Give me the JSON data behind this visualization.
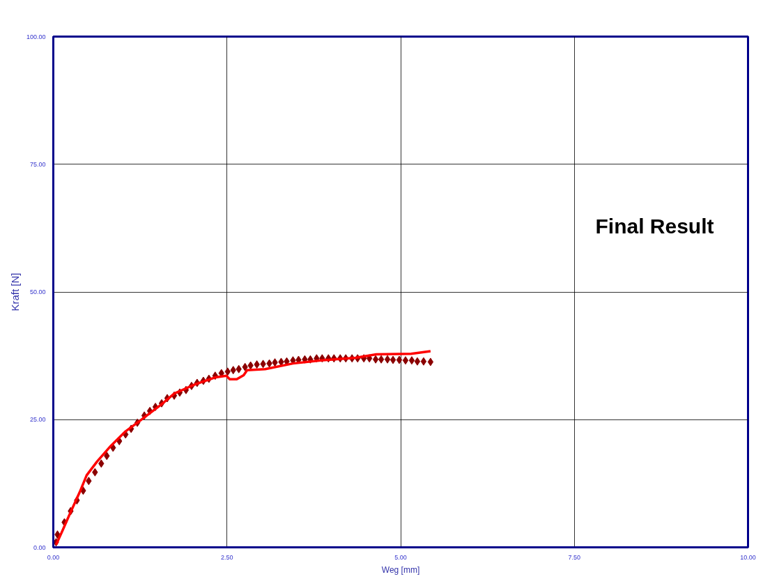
{
  "chart_data": {
    "type": "line",
    "xlabel": "Weg [mm]",
    "ylabel": "Kraft [N]",
    "xlim": [
      0,
      10
    ],
    "ylim": [
      0,
      100
    ],
    "xticks": [
      {
        "value": 0,
        "label": "0.00"
      },
      {
        "value": 2.5,
        "label": "2.50"
      },
      {
        "value": 5,
        "label": "5.00"
      },
      {
        "value": 7.5,
        "label": "7.50"
      },
      {
        "value": 10,
        "label": "10.00"
      }
    ],
    "yticks": [
      {
        "value": 0,
        "label": "0.00"
      },
      {
        "value": 25,
        "label": "25.00"
      },
      {
        "value": 50,
        "label": "50.00"
      },
      {
        "value": 75,
        "label": "75.00"
      },
      {
        "value": 100,
        "label": "100.00"
      }
    ],
    "grid": true,
    "annotations": [
      "Final Result"
    ],
    "series": [
      {
        "type": "scatter",
        "marker": "diamond",
        "color": "#8b0000",
        "x": [
          0.04,
          0.06,
          0.16,
          0.25,
          0.34,
          0.43,
          0.51,
          0.6,
          0.69,
          0.77,
          0.86,
          0.95,
          1.04,
          1.12,
          1.21,
          1.31,
          1.39,
          1.47,
          1.56,
          1.64,
          1.74,
          1.82,
          1.91,
          1.99,
          2.07,
          2.16,
          2.24,
          2.33,
          2.42,
          2.51,
          2.59,
          2.67,
          2.76,
          2.84,
          2.93,
          3.02,
          3.11,
          3.19,
          3.28,
          3.36,
          3.45,
          3.53,
          3.62,
          3.7,
          3.79,
          3.87,
          3.96,
          4.04,
          4.13,
          4.21,
          4.3,
          4.38,
          4.47,
          4.55,
          4.64,
          4.72,
          4.81,
          4.89,
          4.98,
          5.07,
          5.16,
          5.24,
          5.33,
          5.43
        ],
        "values": [
          1.0,
          2.5,
          4.9,
          7.1,
          9.2,
          11.1,
          13.0,
          14.7,
          16.4,
          17.9,
          19.5,
          20.8,
          22.1,
          23.2,
          24.4,
          25.8,
          26.7,
          27.5,
          28.2,
          29.2,
          29.7,
          30.3,
          30.8,
          31.6,
          32.2,
          32.6,
          33.0,
          33.6,
          34.1,
          34.4,
          34.7,
          34.9,
          35.3,
          35.6,
          35.8,
          35.9,
          36.0,
          36.2,
          36.3,
          36.4,
          36.6,
          36.7,
          36.8,
          36.8,
          37.0,
          37.0,
          37.0,
          37.0,
          37.0,
          37.0,
          37.0,
          37.0,
          37.0,
          37.0,
          36.8,
          36.8,
          36.8,
          36.7,
          36.7,
          36.6,
          36.6,
          36.4,
          36.4,
          36.3
        ]
      },
      {
        "marker": "none",
        "line_style": "solid",
        "color": "#ff0000",
        "x": [
          0.04,
          0.13,
          0.23,
          0.38,
          0.48,
          0.63,
          0.83,
          1.04,
          1.24,
          1.54,
          1.74,
          2.04,
          2.34,
          2.49,
          2.54,
          2.64,
          2.74,
          2.79,
          3.05,
          3.45,
          3.85,
          4.35,
          4.65,
          5.15,
          5.43
        ],
        "values": [
          0.5,
          3.2,
          6.3,
          10.8,
          14.1,
          16.8,
          19.9,
          22.7,
          24.7,
          27.8,
          30.1,
          31.9,
          33.3,
          33.6,
          32.9,
          32.9,
          33.7,
          34.7,
          34.9,
          36.0,
          36.6,
          37.1,
          37.8,
          37.9,
          38.4
        ]
      }
    ]
  }
}
